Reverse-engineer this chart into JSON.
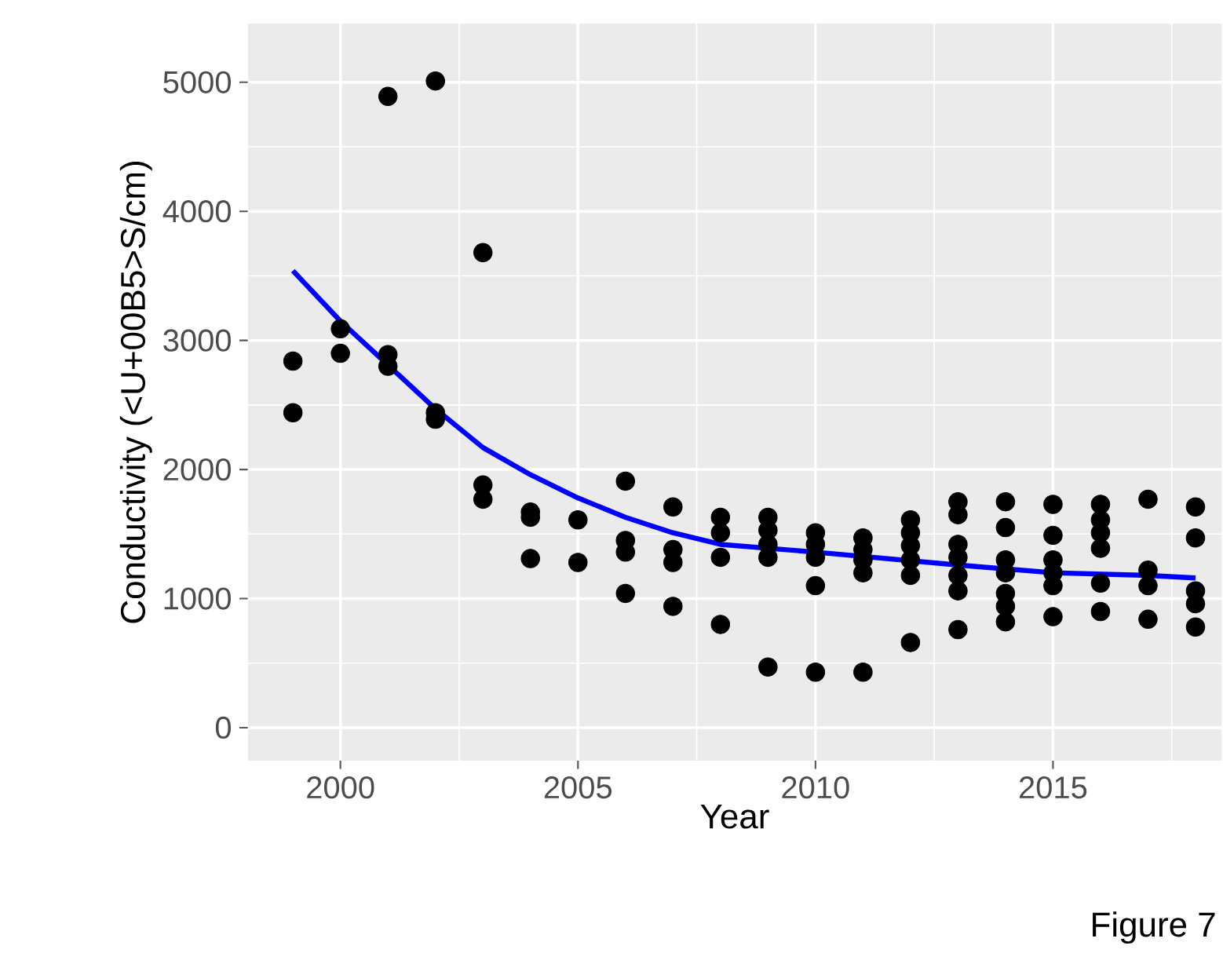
{
  "chart_data": {
    "type": "scatter",
    "xlabel": "Year",
    "ylabel": "Conductivity (<U+00B5>S/cm)",
    "annotations": [
      "Figure 7"
    ],
    "xlim": [
      1998.05,
      2018.55
    ],
    "ylim": [
      -255,
      5455
    ],
    "xticks": [
      2000,
      2005,
      2010,
      2015
    ],
    "yticks": [
      0,
      1000,
      2000,
      3000,
      4000,
      5000
    ],
    "grid": true,
    "legend": false,
    "marker": "circle",
    "series": [
      {
        "type": "scatter",
        "color": "#000000",
        "x": [
          1999,
          1999,
          2000,
          2000,
          2001,
          2001,
          2001,
          2002,
          2002,
          2002,
          2003,
          2003,
          2003,
          2004,
          2004,
          2004,
          2005,
          2005,
          2006,
          2006,
          2006,
          2006,
          2007,
          2007,
          2007,
          2007,
          2008,
          2008,
          2008,
          2008,
          2009,
          2009,
          2009,
          2009,
          2009,
          2010,
          2010,
          2010,
          2010,
          2010,
          2011,
          2011,
          2011,
          2011,
          2011,
          2012,
          2012,
          2012,
          2012,
          2012,
          2012,
          2013,
          2013,
          2013,
          2013,
          2013,
          2013,
          2013,
          2014,
          2014,
          2014,
          2014,
          2014,
          2014,
          2014,
          2015,
          2015,
          2015,
          2015,
          2015,
          2015,
          2016,
          2016,
          2016,
          2016,
          2016,
          2016,
          2017,
          2017,
          2017,
          2017,
          2018,
          2018,
          2018,
          2018,
          2018
        ],
        "values": [
          2840,
          2440,
          3090,
          2900,
          4890,
          2890,
          2800,
          5010,
          2440,
          2390,
          3680,
          1880,
          1770,
          1670,
          1630,
          1310,
          1610,
          1280,
          1910,
          1450,
          1360,
          1040,
          1710,
          1380,
          1280,
          940,
          1630,
          1510,
          1320,
          800,
          1630,
          1530,
          1420,
          1320,
          470,
          1510,
          1420,
          1320,
          1100,
          430,
          1470,
          1380,
          1300,
          1200,
          430,
          1610,
          1510,
          1410,
          1300,
          1180,
          660,
          1750,
          1650,
          1420,
          1320,
          1180,
          1060,
          760,
          1750,
          1550,
          1300,
          1200,
          1040,
          940,
          820,
          1730,
          1490,
          1300,
          1200,
          1100,
          860,
          1730,
          1610,
          1510,
          1390,
          1120,
          900,
          1770,
          1220,
          1100,
          840,
          1710,
          1470,
          1060,
          960,
          780
        ]
      },
      {
        "type": "line",
        "color": "#0000ff",
        "marker": "none",
        "x": [
          1999,
          2000,
          2001,
          2002,
          2003,
          2004,
          2005,
          2006,
          2007,
          2008,
          2010,
          2013,
          2015,
          2017,
          2018
        ],
        "values": [
          3540,
          3150,
          2810,
          2470,
          2170,
          1960,
          1780,
          1630,
          1510,
          1420,
          1360,
          1260,
          1200,
          1180,
          1160
        ]
      }
    ]
  }
}
